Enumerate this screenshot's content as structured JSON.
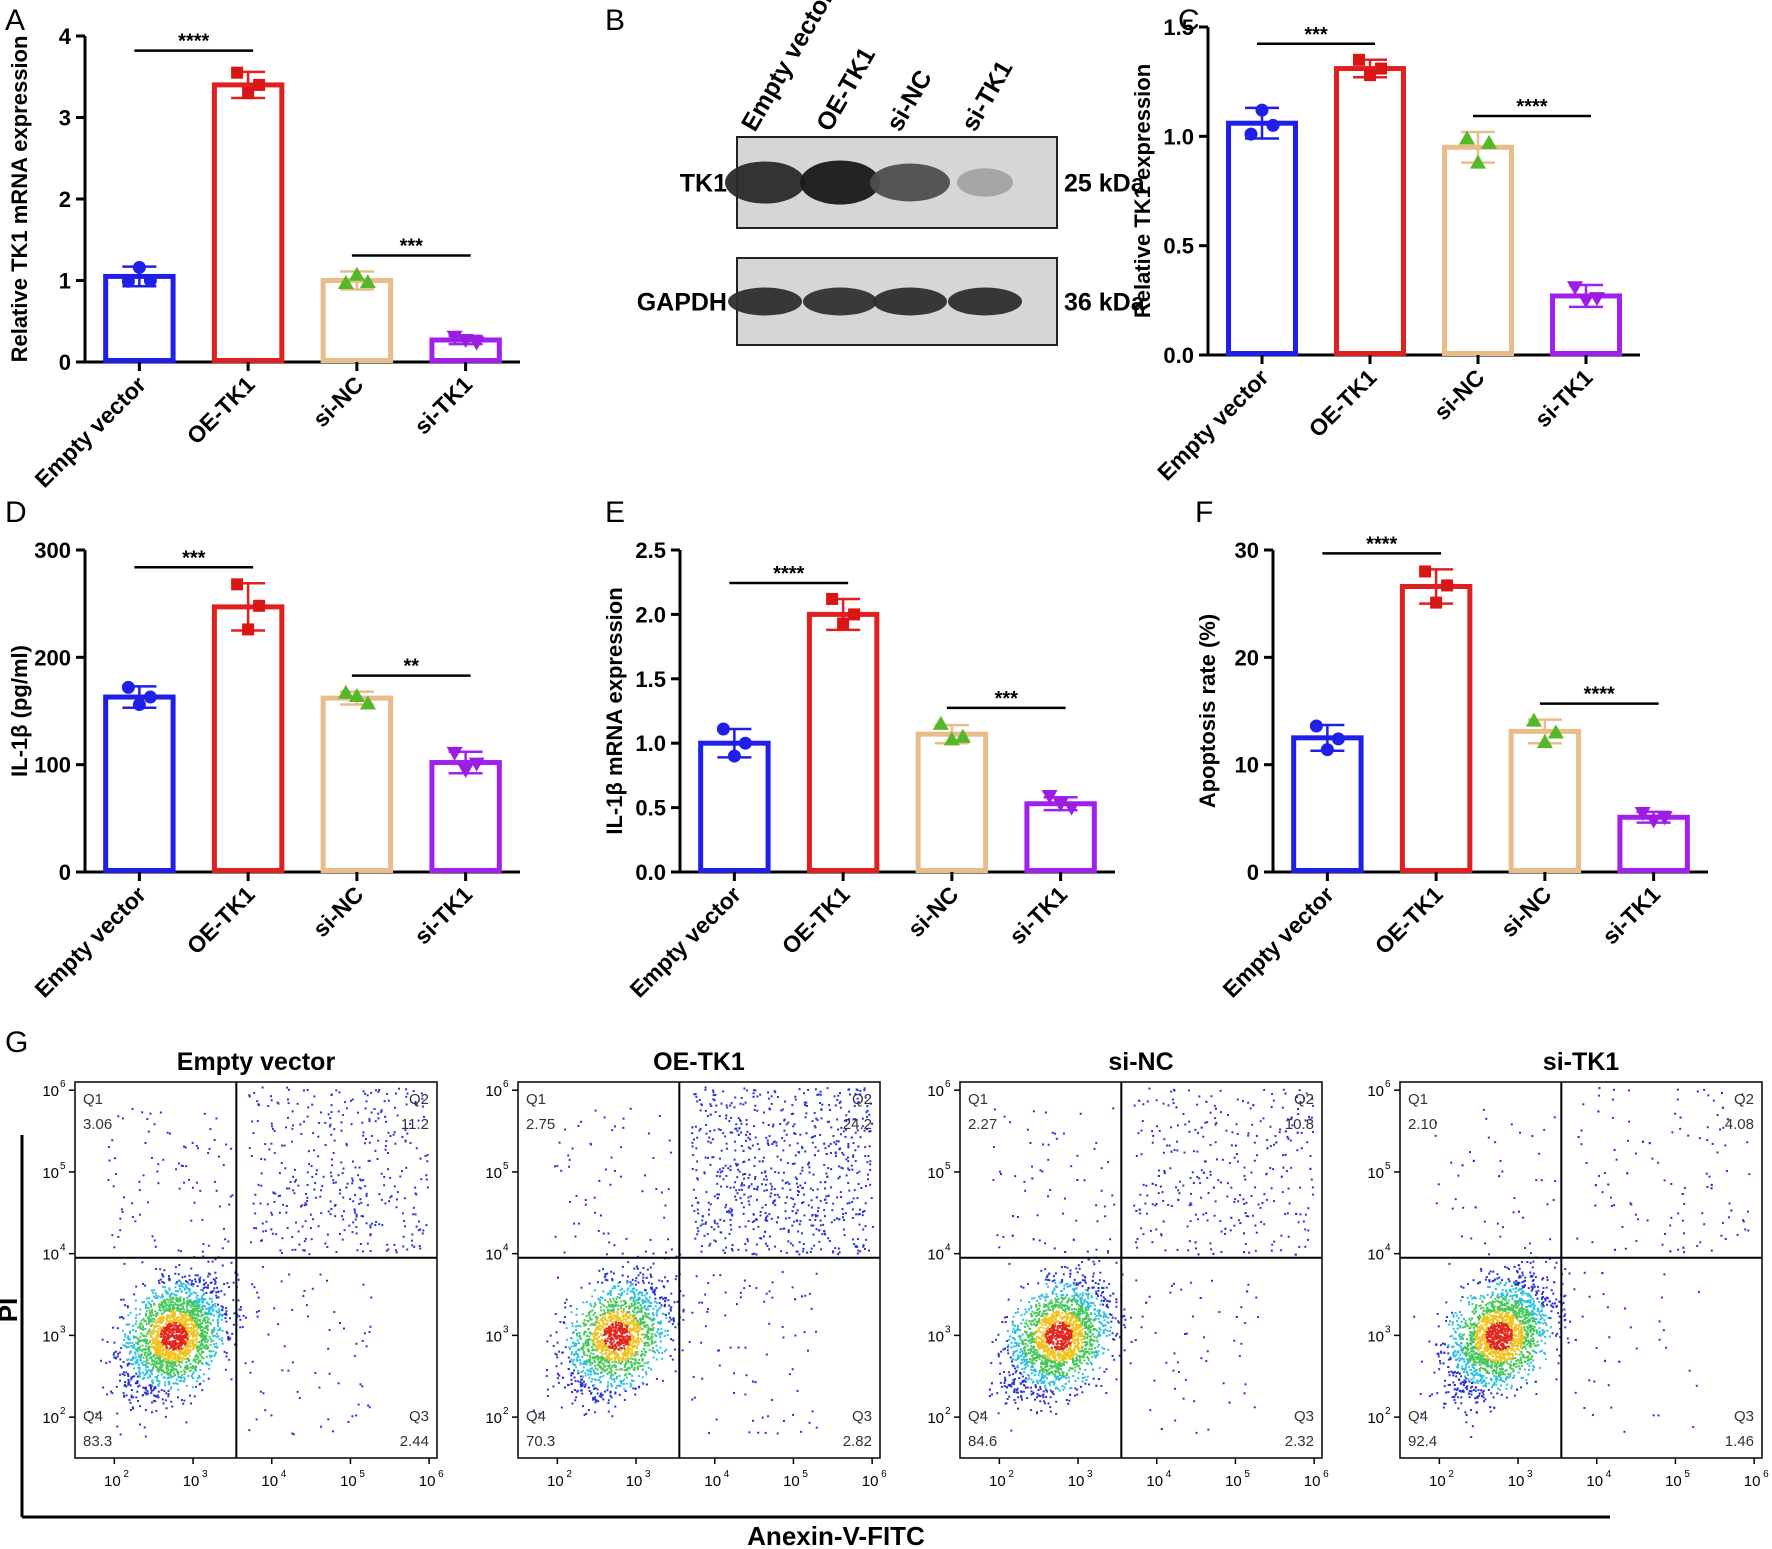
{
  "colors": {
    "empty_vector": "#1f1fe8",
    "oe_tk1": "#e01f1f",
    "si_nc": "#e8bd8a",
    "si_tk1": "#a020f0",
    "axis": "#000000",
    "pt_empty": "#1f1fe8",
    "pt_oe": "#d91515",
    "pt_sinc": "#55b829",
    "pt_sitk1": "#9b1ee0"
  },
  "panel_letters": [
    "A",
    "B",
    "C",
    "D",
    "E",
    "F",
    "G"
  ],
  "chart_data": [
    {
      "panel": "A",
      "type": "bar",
      "ylabel": "Relative TK1 mRNA expression",
      "categories": [
        "Empty vector",
        "OE-TK1",
        "si-NC",
        "si-TK1"
      ],
      "values": [
        1.05,
        3.4,
        1.0,
        0.27
      ],
      "errors": [
        0.12,
        0.16,
        0.11,
        0.05
      ],
      "points": [
        [
          0.99,
          1.16,
          1.0
        ],
        [
          3.55,
          3.3,
          3.4
        ],
        [
          0.97,
          1.07,
          0.98
        ],
        [
          0.31,
          0.27,
          0.24
        ]
      ],
      "markers": [
        "circle",
        "square",
        "triangle",
        "triangle-down"
      ],
      "ylim": [
        0,
        4
      ],
      "yticks": [
        0,
        1,
        2,
        3,
        4
      ],
      "yticklabels": [
        "0",
        "1",
        "2",
        "3",
        "4"
      ],
      "significance": [
        {
          "from": 0,
          "to": 1,
          "label": "****"
        },
        {
          "from": 2,
          "to": 3,
          "label": "***"
        }
      ]
    },
    {
      "panel": "C",
      "type": "bar",
      "ylabel": "Relative TK1 expression",
      "categories": [
        "Empty vector",
        "OE-TK1",
        "si-NC",
        "si-TK1"
      ],
      "values": [
        1.06,
        1.31,
        0.95,
        0.27
      ],
      "errors": [
        0.07,
        0.04,
        0.07,
        0.05
      ],
      "points": [
        [
          1.01,
          1.12,
          1.05
        ],
        [
          1.35,
          1.28,
          1.31
        ],
        [
          0.99,
          0.88,
          0.97
        ],
        [
          0.31,
          0.25,
          0.26
        ]
      ],
      "markers": [
        "circle",
        "square",
        "triangle",
        "triangle-down"
      ],
      "ylim": [
        0,
        1.5
      ],
      "yticks": [
        0,
        0.5,
        1,
        1.5
      ],
      "yticklabels": [
        "0.0",
        "0.5",
        "1.0",
        "1.5"
      ],
      "significance": [
        {
          "from": 0,
          "to": 1,
          "label": "***"
        },
        {
          "from": 2,
          "to": 3,
          "label": "****"
        }
      ]
    },
    {
      "panel": "D",
      "type": "bar",
      "ylabel": "IL-1β (pg/ml)",
      "categories": [
        "Empty vector",
        "OE-TK1",
        "si-NC",
        "si-TK1"
      ],
      "values": [
        163,
        247,
        162,
        102
      ],
      "errors": [
        10,
        22,
        6,
        10
      ],
      "points": [
        [
          172,
          156,
          163
        ],
        [
          268,
          226,
          248
        ],
        [
          167,
          164,
          157
        ],
        [
          111,
          95,
          101
        ]
      ],
      "markers": [
        "circle",
        "square",
        "triangle",
        "triangle-down"
      ],
      "ylim": [
        0,
        300
      ],
      "yticks": [
        0,
        100,
        200,
        300
      ],
      "yticklabels": [
        "0",
        "100",
        "200",
        "300"
      ],
      "significance": [
        {
          "from": 0,
          "to": 1,
          "label": "***"
        },
        {
          "from": 2,
          "to": 3,
          "label": "**"
        }
      ]
    },
    {
      "panel": "E",
      "type": "bar",
      "ylabel": "IL-1β mRNA expression",
      "categories": [
        "Empty vector",
        "OE-TK1",
        "si-NC",
        "si-TK1"
      ],
      "values": [
        1.0,
        2.0,
        1.07,
        0.53
      ],
      "errors": [
        0.11,
        0.12,
        0.07,
        0.05
      ],
      "points": [
        [
          1.11,
          0.9,
          1.0
        ],
        [
          2.12,
          1.93,
          2.0
        ],
        [
          1.15,
          1.03,
          1.05
        ],
        [
          0.59,
          0.53,
          0.5
        ]
      ],
      "markers": [
        "circle",
        "square",
        "triangle",
        "triangle-down"
      ],
      "ylim": [
        0,
        2.5
      ],
      "yticks": [
        0,
        0.5,
        1,
        1.5,
        2,
        2.5
      ],
      "yticklabels": [
        "0.0",
        "0.5",
        "1.0",
        "1.5",
        "2.0",
        "2.5"
      ],
      "significance": [
        {
          "from": 0,
          "to": 1,
          "label": "****"
        },
        {
          "from": 2,
          "to": 3,
          "label": "***"
        }
      ]
    },
    {
      "panel": "F",
      "type": "bar",
      "ylabel": "Apoptosis rate (%)",
      "categories": [
        "Empty vector",
        "OE-TK1",
        "si-NC",
        "si-TK1"
      ],
      "values": [
        12.5,
        26.6,
        13.1,
        5.1
      ],
      "errors": [
        1.2,
        1.6,
        1.1,
        0.5
      ],
      "points": [
        [
          13.6,
          11.4,
          12.4
        ],
        [
          28.0,
          25.1,
          26.7
        ],
        [
          14.1,
          12.1,
          13.0
        ],
        [
          5.5,
          4.8,
          5.1
        ]
      ],
      "markers": [
        "circle",
        "square",
        "triangle",
        "triangle-down"
      ],
      "ylim": [
        0,
        30
      ],
      "yticks": [
        0,
        10,
        20,
        30
      ],
      "yticklabels": [
        "0",
        "10",
        "20",
        "30"
      ],
      "significance": [
        {
          "from": 0,
          "to": 1,
          "label": "****"
        },
        {
          "from": 2,
          "to": 3,
          "label": "****"
        }
      ]
    }
  ],
  "blot": {
    "lanes": [
      "Empty vector",
      "OE-TK1",
      "si-NC",
      "si-TK1"
    ],
    "rows": [
      {
        "label": "TK1",
        "size": "25 kDa",
        "intensities": [
          0.92,
          1.0,
          0.75,
          0.35
        ]
      },
      {
        "label": "GAPDH",
        "size": "36 kDa",
        "intensities": [
          0.9,
          0.88,
          0.9,
          0.9
        ]
      }
    ]
  },
  "flow": {
    "titles": [
      "Empty vector",
      "OE-TK1",
      "si-NC",
      "si-TK1"
    ],
    "xlabel": "Anexin-V-FITC",
    "ylabel": "PI",
    "quadrants": [
      {
        "q1": "3.06",
        "q2": "11.2",
        "q3": "2.44",
        "q4": "83.3"
      },
      {
        "q1": "2.75",
        "q2": "24.2",
        "q3": "2.82",
        "q4": "70.3"
      },
      {
        "q1": "2.27",
        "q2": "10.8",
        "q3": "2.32",
        "q4": "84.6"
      },
      {
        "q1": "2.10",
        "q2": "4.08",
        "q3": "1.46",
        "q4": "92.4"
      }
    ],
    "quadrant_labels": [
      "Q1",
      "Q2",
      "Q3",
      "Q4"
    ],
    "tick_exponents": [
      "2",
      "3",
      "4",
      "5",
      "6"
    ]
  }
}
